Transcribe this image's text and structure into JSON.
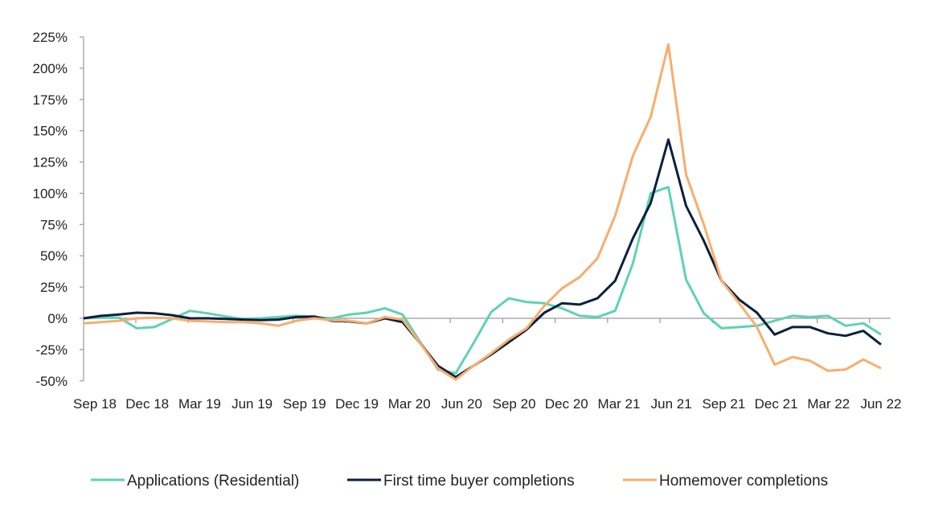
{
  "chart_data": {
    "type": "line",
    "title": "",
    "xlabel": "",
    "ylabel": "",
    "ylim": [
      -50,
      225
    ],
    "yticks": [
      -50,
      -25,
      0,
      25,
      50,
      75,
      100,
      125,
      150,
      175,
      200,
      225
    ],
    "ytick_labels": [
      "-50%",
      "-25%",
      "0%",
      "25%",
      "50%",
      "75%",
      "100%",
      "125%",
      "150%",
      "175%",
      "200%",
      "225%"
    ],
    "x_start": "Sep 18",
    "x_end": "Jun 22",
    "x_frequency": "monthly",
    "xtick_labels": [
      "Sep 18",
      "Dec 18",
      "Mar 19",
      "Jun 19",
      "Sep 19",
      "Dec 19",
      "Mar 20",
      "Jun 20",
      "Sep 20",
      "Dec 20",
      "Mar 21",
      "Jun 21",
      "Sep 21",
      "Dec 21",
      "Mar 22",
      "Jun 22"
    ],
    "legend_position": "bottom",
    "grid": false,
    "series": [
      {
        "name": "Applications (Residential)",
        "color": "#5ed3b1",
        "values": [
          0,
          0.5,
          0.5,
          -8,
          -7,
          -0.5,
          6,
          4,
          1.5,
          -0.5,
          0,
          1,
          2,
          1,
          0,
          3,
          4.5,
          8,
          3,
          -19,
          -41,
          -44,
          -20,
          5,
          16,
          13,
          12,
          8,
          2,
          1,
          6,
          44,
          100,
          105,
          31,
          4,
          -8,
          -7,
          -6,
          -2,
          2,
          1,
          2,
          -6,
          -4,
          -13
        ]
      },
      {
        "name": "First time buyer completions",
        "color": "#0d1f40",
        "values": [
          0,
          2,
          3,
          4.5,
          4,
          2.5,
          0,
          0,
          -0.5,
          -1,
          -1.5,
          -1,
          1,
          1.5,
          -2,
          -2.5,
          -4,
          0,
          -3,
          -20,
          -38,
          -47,
          -38,
          -29,
          -19,
          -9,
          4.5,
          12,
          11,
          16,
          30,
          64,
          92,
          143,
          90,
          62,
          30,
          15,
          4.5,
          -13,
          -7,
          -7,
          -12,
          -14,
          -10,
          -21
        ]
      },
      {
        "name": "Homemover completions",
        "color": "#f8ad6d",
        "values": [
          -4,
          -3,
          -2,
          0,
          0.5,
          0,
          -2,
          -2.5,
          -3,
          -3,
          -4,
          -6,
          -2,
          0,
          -1.5,
          -2,
          -4,
          1,
          -1,
          -20,
          -40,
          -49,
          -38,
          -28,
          -17,
          -8,
          10,
          24,
          33,
          48,
          82,
          130,
          161,
          219,
          115,
          75,
          30,
          12,
          -7,
          -37,
          -31,
          -34,
          -42,
          -41,
          -33,
          -40
        ]
      }
    ]
  }
}
